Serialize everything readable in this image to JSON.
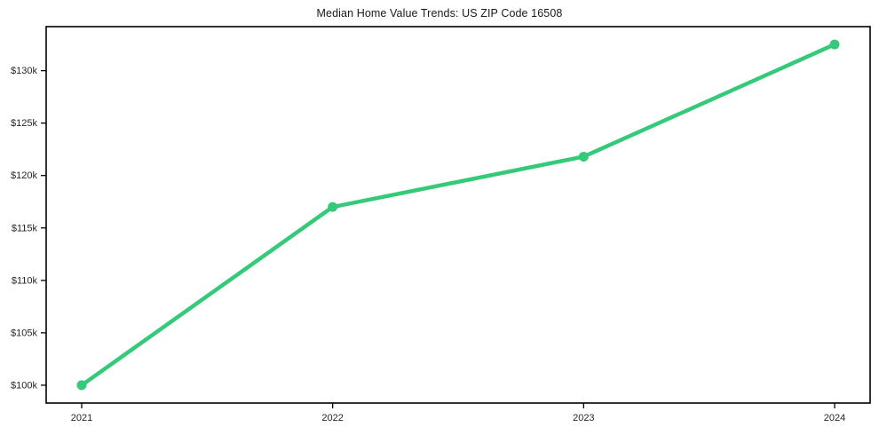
{
  "chart": {
    "title": "Median Home Value Trends: US ZIP Code 16508"
  },
  "chart_data": {
    "type": "line",
    "title": "Median Home Value Trends: US ZIP Code 16508",
    "categories": [
      "2021",
      "2022",
      "2023",
      "2024"
    ],
    "series": [
      {
        "name": "Median Home Value",
        "values": [
          100000,
          117000,
          121800,
          132500
        ]
      }
    ],
    "xlabel": "",
    "ylabel": "",
    "ylim": [
      98300,
      134200
    ],
    "yticks": [
      100000,
      105000,
      110000,
      115000,
      120000,
      125000,
      130000
    ],
    "ytick_labels": [
      "$100k",
      "$105k",
      "$110k",
      "$115k",
      "$120k",
      "$125k",
      "$130k"
    ],
    "grid": false,
    "legend_position": "none",
    "line_color": "#35c97a",
    "marker": "circle",
    "axis_color": "#000000",
    "tick_label_color": "#262626"
  }
}
